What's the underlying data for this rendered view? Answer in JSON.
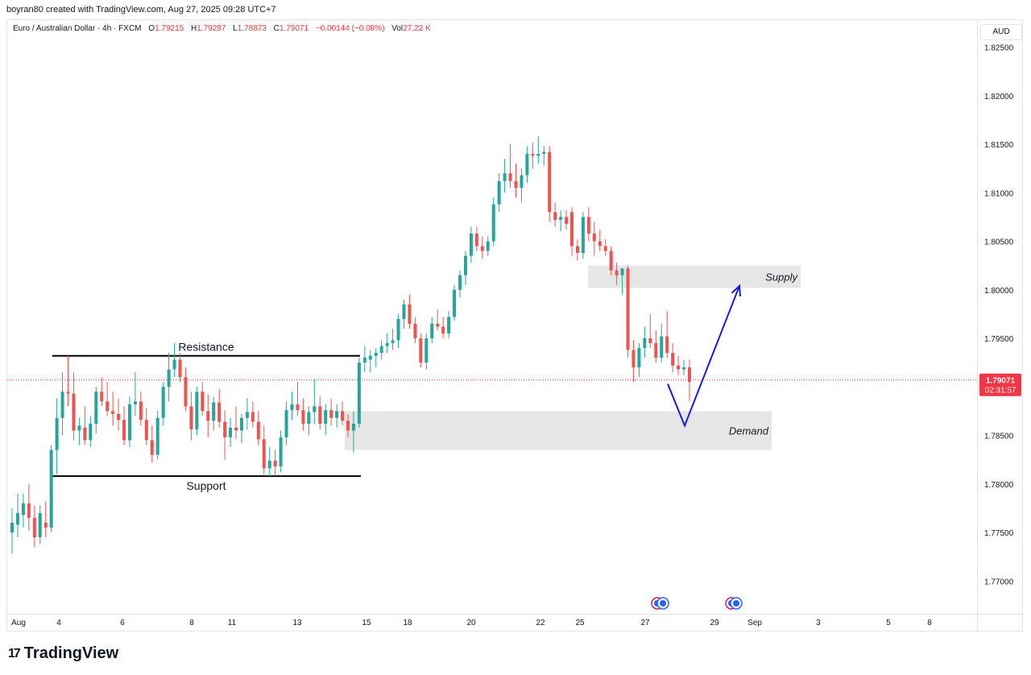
{
  "header": {
    "attribution": "boyran80 created with TradingView.com, Aug 27, 2025 09:28 UTC+7"
  },
  "legend": {
    "symbol": "Euro / Australian Dollar · 4h · FXCM",
    "open_label": "O",
    "open": "1.79215",
    "high_label": "H",
    "high": "1.79297",
    "low_label": "L",
    "low": "1.78873",
    "close_label": "C",
    "close": "1.79071",
    "change": "−0.00144 (−0.08%)",
    "vol_label": "Vol",
    "vol": "27.22 K"
  },
  "currency": "AUD",
  "price_badge": {
    "price": "1.79071",
    "countdown": "02:31:57"
  },
  "brand": {
    "name": "TradingView",
    "icon": "tradingview-logo-icon"
  },
  "colors": {
    "up": "#26a69a",
    "down": "#ef5350",
    "arrow": "#1a1ae6",
    "zone": "#e6e6e6",
    "price_line": "#f23645"
  },
  "chart_data": {
    "type": "candlestick",
    "y_ticks": [
      "1.82500",
      "1.82000",
      "1.81500",
      "1.81000",
      "1.80500",
      "1.80000",
      "1.79500",
      "1.79000",
      "1.78500",
      "1.78000",
      "1.77500",
      "1.77000"
    ],
    "ylim": [
      1.7665,
      1.8285
    ],
    "x_ticks": [
      "Aug",
      "4",
      "6",
      "8",
      "11",
      "13",
      "15",
      "18",
      "20",
      "22",
      "25",
      "27",
      "29",
      "Sep",
      "3",
      "5",
      "8"
    ],
    "current_price": 1.79071,
    "annotations": [
      {
        "label": "Resistance",
        "value": 1.7932
      },
      {
        "label": "Support",
        "value": 1.7808
      },
      {
        "label": "Supply",
        "from": 1.8002,
        "to": 1.8025
      },
      {
        "label": "Demand",
        "from": 1.7835,
        "to": 1.7875
      }
    ],
    "projection": [
      {
        "date": "Aug 27",
        "value": 1.7903
      },
      {
        "date": "Aug 28",
        "value": 1.786
      },
      {
        "date": "Aug 29",
        "value": 1.8004
      }
    ],
    "candles": [
      [
        1.775,
        1.7775,
        1.7728,
        1.776
      ],
      [
        1.7758,
        1.779,
        1.7745,
        1.777
      ],
      [
        1.7768,
        1.779,
        1.7755,
        1.778
      ],
      [
        1.778,
        1.78,
        1.7752,
        1.7765
      ],
      [
        1.7765,
        1.7778,
        1.7735,
        1.7745
      ],
      [
        1.7745,
        1.7778,
        1.7738,
        1.777
      ],
      [
        1.776,
        1.7782,
        1.7745,
        1.7755
      ],
      [
        1.7755,
        1.784,
        1.775,
        1.7835
      ],
      [
        1.7835,
        1.7888,
        1.781,
        1.7868
      ],
      [
        1.7868,
        1.7915,
        1.785,
        1.7895
      ],
      [
        1.7895,
        1.7932,
        1.788,
        1.7893
      ],
      [
        1.7893,
        1.7915,
        1.7845,
        1.7855
      ],
      [
        1.7855,
        1.7868,
        1.784,
        1.786
      ],
      [
        1.7858,
        1.788,
        1.784,
        1.7845
      ],
      [
        1.7845,
        1.787,
        1.7838,
        1.7862
      ],
      [
        1.7862,
        1.79,
        1.7852,
        1.7895
      ],
      [
        1.7895,
        1.791,
        1.788,
        1.7885
      ],
      [
        1.7885,
        1.7905,
        1.787,
        1.7875
      ],
      [
        1.7875,
        1.7895,
        1.786,
        1.7872
      ],
      [
        1.7872,
        1.7888,
        1.7855,
        1.7866
      ],
      [
        1.7866,
        1.788,
        1.784,
        1.7845
      ],
      [
        1.7845,
        1.789,
        1.7838,
        1.7882
      ],
      [
        1.7882,
        1.7915,
        1.787,
        1.7885
      ],
      [
        1.7885,
        1.7895,
        1.786,
        1.7866
      ],
      [
        1.7866,
        1.7878,
        1.784,
        1.7845
      ],
      [
        1.7845,
        1.786,
        1.7822,
        1.783
      ],
      [
        1.783,
        1.7875,
        1.7825,
        1.7868
      ],
      [
        1.7868,
        1.7905,
        1.786,
        1.79
      ],
      [
        1.79,
        1.7935,
        1.7885,
        1.7918
      ],
      [
        1.7918,
        1.7945,
        1.791,
        1.7928
      ],
      [
        1.7928,
        1.7935,
        1.7905,
        1.791
      ],
      [
        1.791,
        1.792,
        1.7875,
        1.788
      ],
      [
        1.788,
        1.7895,
        1.7845,
        1.7856
      ],
      [
        1.7856,
        1.79,
        1.785,
        1.7895
      ],
      [
        1.7895,
        1.7905,
        1.787,
        1.7875
      ],
      [
        1.7875,
        1.7892,
        1.7848,
        1.7865
      ],
      [
        1.7865,
        1.789,
        1.7855,
        1.7884
      ],
      [
        1.7884,
        1.7898,
        1.7858,
        1.7864
      ],
      [
        1.7864,
        1.7876,
        1.7825,
        1.7848
      ],
      [
        1.7848,
        1.7868,
        1.7838,
        1.7858
      ],
      [
        1.7858,
        1.788,
        1.7846,
        1.7855
      ],
      [
        1.7855,
        1.7872,
        1.7842,
        1.7868
      ],
      [
        1.7868,
        1.7888,
        1.7856,
        1.7874
      ],
      [
        1.7874,
        1.7885,
        1.7858,
        1.7864
      ],
      [
        1.7864,
        1.7875,
        1.784,
        1.7846
      ],
      [
        1.7846,
        1.786,
        1.781,
        1.7816
      ],
      [
        1.7816,
        1.7838,
        1.7808,
        1.7824
      ],
      [
        1.7824,
        1.7835,
        1.7808,
        1.7818
      ],
      [
        1.7818,
        1.7855,
        1.7812,
        1.7848
      ],
      [
        1.7848,
        1.7885,
        1.784,
        1.7876
      ],
      [
        1.7876,
        1.7895,
        1.7866,
        1.7882
      ],
      [
        1.7882,
        1.7905,
        1.787,
        1.7876
      ],
      [
        1.7876,
        1.7888,
        1.7855,
        1.7862
      ],
      [
        1.7862,
        1.788,
        1.785,
        1.7874
      ],
      [
        1.7874,
        1.7908,
        1.7862,
        1.788
      ],
      [
        1.788,
        1.789,
        1.7856,
        1.7862
      ],
      [
        1.7862,
        1.7882,
        1.785,
        1.7876
      ],
      [
        1.7876,
        1.7888,
        1.786,
        1.7868
      ],
      [
        1.7868,
        1.7882,
        1.7858,
        1.7875
      ],
      [
        1.7875,
        1.7885,
        1.786,
        1.7865
      ],
      [
        1.7865,
        1.7872,
        1.7848,
        1.7855
      ],
      [
        1.7855,
        1.7875,
        1.7832,
        1.7862
      ],
      [
        1.7862,
        1.793,
        1.7858,
        1.7925
      ],
      [
        1.7925,
        1.7942,
        1.7915,
        1.793
      ],
      [
        1.7928,
        1.7938,
        1.7915,
        1.7932
      ],
      [
        1.7932,
        1.794,
        1.792,
        1.7935
      ],
      [
        1.7935,
        1.7948,
        1.7928,
        1.7942
      ],
      [
        1.7942,
        1.7955,
        1.7935,
        1.7945
      ],
      [
        1.7945,
        1.796,
        1.7938,
        1.7948
      ],
      [
        1.7948,
        1.7975,
        1.794,
        1.797
      ],
      [
        1.797,
        1.799,
        1.796,
        1.7985
      ],
      [
        1.7985,
        1.7995,
        1.796,
        1.7965
      ],
      [
        1.7965,
        1.7972,
        1.7945,
        1.795
      ],
      [
        1.795,
        1.7955,
        1.792,
        1.7925
      ],
      [
        1.7925,
        1.7955,
        1.7918,
        1.795
      ],
      [
        1.795,
        1.7972,
        1.7945,
        1.7965
      ],
      [
        1.7965,
        1.798,
        1.7958,
        1.7962
      ],
      [
        1.7962,
        1.7972,
        1.795,
        1.7955
      ],
      [
        1.7955,
        1.7978,
        1.795,
        1.7972
      ],
      [
        1.7972,
        1.8005,
        1.7968,
        1.8
      ],
      [
        1.8,
        1.802,
        1.7992,
        1.8015
      ],
      [
        1.8015,
        1.804,
        1.8005,
        1.8035
      ],
      [
        1.8035,
        1.8065,
        1.8028,
        1.8058
      ],
      [
        1.8058,
        1.8065,
        1.804,
        1.8045
      ],
      [
        1.8045,
        1.8055,
        1.8032,
        1.804
      ],
      [
        1.804,
        1.8055,
        1.8035,
        1.805
      ],
      [
        1.805,
        1.8095,
        1.8045,
        1.8088
      ],
      [
        1.8088,
        1.812,
        1.808,
        1.8112
      ],
      [
        1.8112,
        1.8135,
        1.81,
        1.812
      ],
      [
        1.812,
        1.815,
        1.8105,
        1.8112
      ],
      [
        1.8112,
        1.813,
        1.8095,
        1.8105
      ],
      [
        1.8105,
        1.8125,
        1.809,
        1.8118
      ],
      [
        1.8118,
        1.8148,
        1.811,
        1.814
      ],
      [
        1.814,
        1.8152,
        1.8125,
        1.8138
      ],
      [
        1.8138,
        1.8158,
        1.813,
        1.814
      ],
      [
        1.814,
        1.8148,
        1.8128,
        1.8142
      ],
      [
        1.8142,
        1.8148,
        1.807,
        1.808
      ],
      [
        1.808,
        1.809,
        1.8065,
        1.8072
      ],
      [
        1.8072,
        1.8082,
        1.806,
        1.8075
      ],
      [
        1.8075,
        1.8082,
        1.8062,
        1.8068
      ],
      [
        1.808,
        1.8085,
        1.8035,
        1.8045
      ],
      [
        1.8045,
        1.8052,
        1.803,
        1.8038
      ],
      [
        1.8038,
        1.808,
        1.8032,
        1.8075
      ],
      [
        1.8075,
        1.8085,
        1.805,
        1.8058
      ],
      [
        1.8058,
        1.807,
        1.8035,
        1.805
      ],
      [
        1.805,
        1.8062,
        1.804,
        1.8045
      ],
      [
        1.8045,
        1.8052,
        1.8035,
        1.804
      ],
      [
        1.804,
        1.8045,
        1.8015,
        1.802
      ],
      [
        1.802,
        1.8028,
        1.8005,
        1.8015
      ],
      [
        1.8015,
        1.8022,
        1.7995,
        1.8022
      ],
      [
        1.8022,
        1.8025,
        1.793,
        1.7938
      ],
      [
        1.7938,
        1.7948,
        1.7905,
        1.792
      ],
      [
        1.792,
        1.7945,
        1.791,
        1.794
      ],
      [
        1.794,
        1.7962,
        1.793,
        1.795
      ],
      [
        1.795,
        1.7975,
        1.794,
        1.7945
      ],
      [
        1.7945,
        1.7958,
        1.7925,
        1.793
      ],
      [
        1.793,
        1.7965,
        1.7925,
        1.7952
      ],
      [
        1.7952,
        1.7978,
        1.793,
        1.7935
      ],
      [
        1.7935,
        1.7945,
        1.7915,
        1.7922
      ],
      [
        1.7922,
        1.7932,
        1.7912,
        1.7918
      ],
      [
        1.7918,
        1.7928,
        1.7912,
        1.792
      ],
      [
        1.792,
        1.7928,
        1.7885,
        1.7905
      ]
    ]
  }
}
